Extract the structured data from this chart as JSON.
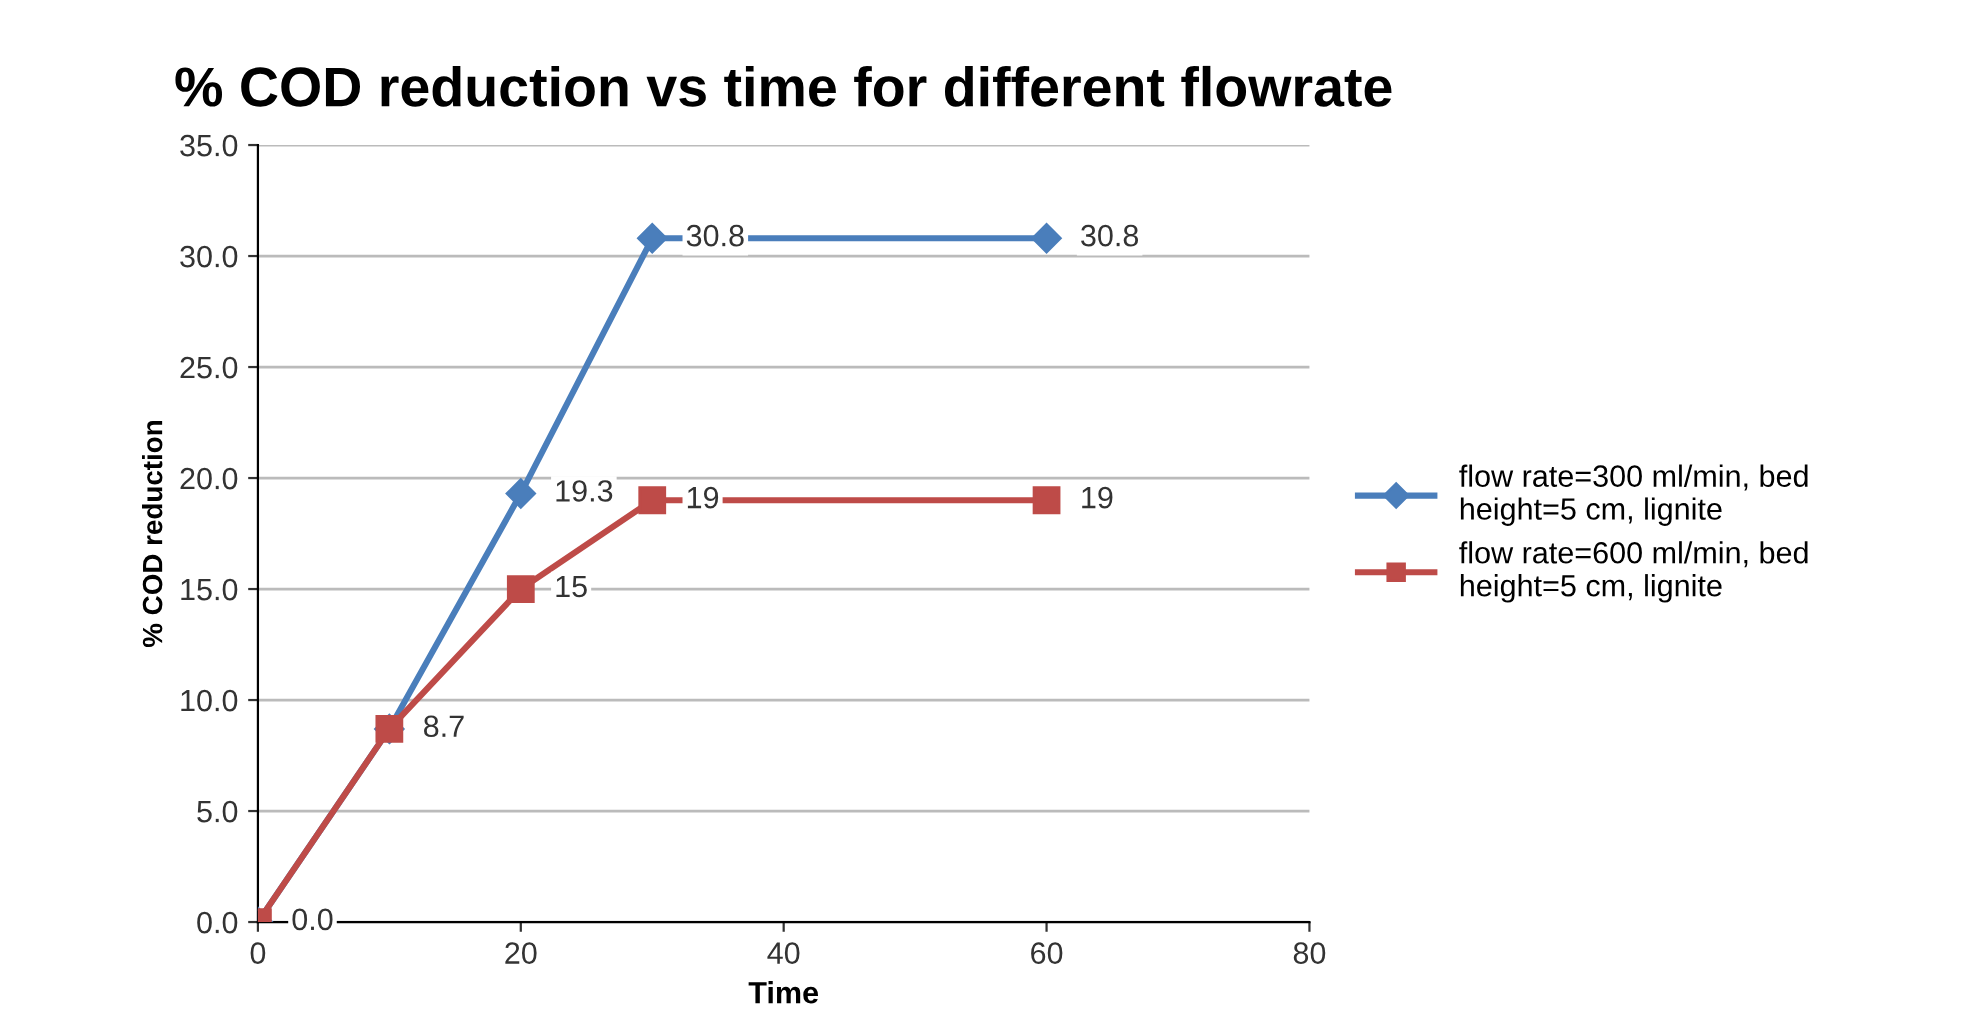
{
  "chart_data": {
    "type": "line",
    "title": "% COD reduction vs time for different flowrate",
    "xlabel": "Time",
    "ylabel": "% COD reduction",
    "x": [
      0,
      10,
      20,
      30,
      60
    ],
    "series": [
      {
        "name": "flow rate=300 ml/min, bed height=5 cm, lignite",
        "color": "#4a7ebb",
        "marker": "diamond",
        "values": [
          0.0,
          8.7,
          19.3,
          30.8,
          30.8
        ],
        "value_labels": [
          "0.0",
          null,
          "19.3",
          "30.8",
          "30.8"
        ]
      },
      {
        "name": "flow rate=600 ml/min, bed height=5 cm, lignite",
        "color": "#be4b48",
        "marker": "square",
        "values": [
          0,
          8.7,
          15,
          19,
          19
        ],
        "value_labels": [
          null,
          "8.7",
          "15",
          "19",
          "19"
        ]
      }
    ],
    "xlim": [
      0,
      80
    ],
    "xticks": [
      0,
      20,
      40,
      60,
      80
    ],
    "ylim": [
      0,
      35
    ],
    "yticks": [
      {
        "value": 0,
        "label": "0.0"
      },
      {
        "value": 5,
        "label": "5.0"
      },
      {
        "value": 10,
        "label": "10.0"
      },
      {
        "value": 15,
        "label": "15.0"
      },
      {
        "value": 20,
        "label": "20.0"
      },
      {
        "value": 25,
        "label": "25.0"
      },
      {
        "value": 30,
        "label": "30.0"
      },
      {
        "value": 35,
        "label": "35.0"
      }
    ],
    "grid": "y",
    "legend": "right",
    "line_style": "solid"
  }
}
